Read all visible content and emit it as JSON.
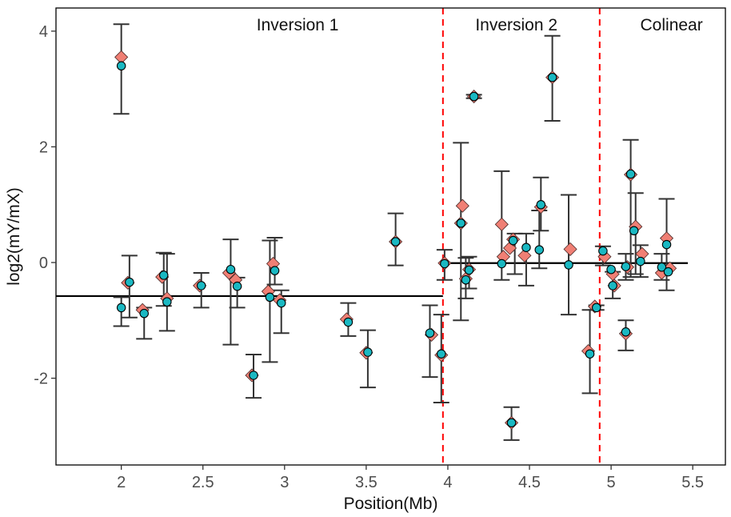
{
  "chart_data": {
    "type": "scatter",
    "title": "",
    "xlabel": "Position(Mb)",
    "ylabel": "log2(mY/mX)",
    "xlim": [
      1.6,
      5.7
    ],
    "ylim": [
      -3.5,
      4.4
    ],
    "x_ticks": [
      2,
      2.5,
      3,
      3.5,
      4,
      4.5,
      5,
      5.5
    ],
    "x_tick_labels": [
      "2",
      "2.5",
      "3",
      "3.5",
      "4",
      "4.5",
      "5",
      "5.5"
    ],
    "y_ticks": [
      -2,
      0,
      2,
      4
    ],
    "y_tick_labels": [
      "-2",
      "0",
      "2",
      "4"
    ],
    "grid": false,
    "colors": {
      "diamond": "#f07f74",
      "circle": "#1ab8c2",
      "errorbar": "#333333",
      "divider": "#ff0000",
      "segment": "#000000"
    },
    "regions": [
      {
        "label": "Inversion 1",
        "label_x": 3.08,
        "from": 1.6,
        "to": 3.97
      },
      {
        "label": "Inversion 2",
        "label_x": 4.42,
        "from": 3.97,
        "to": 4.93
      },
      {
        "label": "Colinear",
        "label_x": 5.37,
        "from": 4.93,
        "to": 5.7
      }
    ],
    "dividers": [
      3.97,
      4.93
    ],
    "mean_segments": [
      {
        "x_start": 1.6,
        "x_end": 3.97,
        "y": -0.58
      },
      {
        "x_start": 3.97,
        "x_end": 5.47,
        "y": -0.01
      }
    ],
    "series": [
      {
        "shape": "diamond",
        "points": [
          {
            "x": 2.0,
            "y": 3.55
          },
          {
            "x": 2.04,
            "y": -0.35
          },
          {
            "x": 2.13,
            "y": -0.82
          },
          {
            "x": 2.25,
            "y": -0.25
          },
          {
            "x": 2.28,
            "y": -0.62
          },
          {
            "x": 2.48,
            "y": -0.4
          },
          {
            "x": 2.66,
            "y": -0.18
          },
          {
            "x": 2.7,
            "y": -0.3
          },
          {
            "x": 2.8,
            "y": -1.95
          },
          {
            "x": 2.9,
            "y": -0.5
          },
          {
            "x": 2.93,
            "y": -0.02
          },
          {
            "x": 2.97,
            "y": -0.65
          },
          {
            "x": 3.38,
            "y": -0.98
          },
          {
            "x": 3.5,
            "y": -1.56
          },
          {
            "x": 3.68,
            "y": 0.36
          },
          {
            "x": 3.9,
            "y": -1.25
          },
          {
            "x": 3.96,
            "y": -1.6
          },
          {
            "x": 3.98,
            "y": -0.01
          },
          {
            "x": 4.09,
            "y": 0.98
          },
          {
            "x": 4.08,
            "y": 0.68
          },
          {
            "x": 4.11,
            "y": -0.28
          },
          {
            "x": 4.13,
            "y": -0.12
          },
          {
            "x": 4.16,
            "y": 2.87
          },
          {
            "x": 4.33,
            "y": 0.66
          },
          {
            "x": 4.34,
            "y": 0.1
          },
          {
            "x": 4.38,
            "y": 0.25
          },
          {
            "x": 4.39,
            "y": -2.77
          },
          {
            "x": 4.4,
            "y": 0.4
          },
          {
            "x": 4.47,
            "y": 0.12
          },
          {
            "x": 4.57,
            "y": 0.96
          },
          {
            "x": 4.64,
            "y": 3.2
          },
          {
            "x": 4.75,
            "y": 0.23
          },
          {
            "x": 4.86,
            "y": -1.53
          },
          {
            "x": 4.9,
            "y": -0.76
          },
          {
            "x": 4.96,
            "y": 0.1
          },
          {
            "x": 5.01,
            "y": -0.2
          },
          {
            "x": 5.02,
            "y": -0.4
          },
          {
            "x": 5.09,
            "y": -1.23
          },
          {
            "x": 5.1,
            "y": -0.08
          },
          {
            "x": 5.12,
            "y": 1.52
          },
          {
            "x": 5.15,
            "y": 0.62
          },
          {
            "x": 5.19,
            "y": 0.15
          },
          {
            "x": 5.31,
            "y": -0.18
          },
          {
            "x": 5.34,
            "y": 0.42
          },
          {
            "x": 5.36,
            "y": -0.1
          }
        ]
      },
      {
        "shape": "circle",
        "points": [
          {
            "x": 2.0,
            "y": 3.4
          },
          {
            "x": 2.0,
            "y": -0.78
          },
          {
            "x": 2.05,
            "y": -0.34
          },
          {
            "x": 2.14,
            "y": -0.88
          },
          {
            "x": 2.26,
            "y": -0.22
          },
          {
            "x": 2.28,
            "y": -0.68
          },
          {
            "x": 2.49,
            "y": -0.4
          },
          {
            "x": 2.67,
            "y": -0.12
          },
          {
            "x": 2.71,
            "y": -0.41
          },
          {
            "x": 2.81,
            "y": -1.95
          },
          {
            "x": 2.91,
            "y": -0.6
          },
          {
            "x": 2.94,
            "y": -0.14
          },
          {
            "x": 2.98,
            "y": -0.7
          },
          {
            "x": 3.39,
            "y": -1.03
          },
          {
            "x": 3.51,
            "y": -1.55
          },
          {
            "x": 3.68,
            "y": 0.36
          },
          {
            "x": 3.89,
            "y": -1.22
          },
          {
            "x": 3.96,
            "y": -1.58
          },
          {
            "x": 3.98,
            "y": -0.02
          },
          {
            "x": 4.08,
            "y": 0.68
          },
          {
            "x": 4.11,
            "y": -0.3
          },
          {
            "x": 4.13,
            "y": -0.13
          },
          {
            "x": 4.16,
            "y": 2.87
          },
          {
            "x": 4.33,
            "y": -0.02
          },
          {
            "x": 4.39,
            "y": -2.77
          },
          {
            "x": 4.4,
            "y": 0.38
          },
          {
            "x": 4.48,
            "y": 0.26
          },
          {
            "x": 4.56,
            "y": 0.22
          },
          {
            "x": 4.57,
            "y": 1.0
          },
          {
            "x": 4.64,
            "y": 3.2
          },
          {
            "x": 4.74,
            "y": -0.04
          },
          {
            "x": 4.87,
            "y": -1.58
          },
          {
            "x": 4.91,
            "y": -0.78
          },
          {
            "x": 4.95,
            "y": 0.2
          },
          {
            "x": 5.0,
            "y": -0.12
          },
          {
            "x": 5.01,
            "y": -0.4
          },
          {
            "x": 5.09,
            "y": -1.2
          },
          {
            "x": 5.09,
            "y": -0.07
          },
          {
            "x": 5.12,
            "y": 1.53
          },
          {
            "x": 5.14,
            "y": 0.55
          },
          {
            "x": 5.18,
            "y": 0.02
          },
          {
            "x": 5.31,
            "y": -0.08
          },
          {
            "x": 5.34,
            "y": 0.31
          },
          {
            "x": 5.35,
            "y": -0.16
          }
        ]
      }
    ],
    "error_bars": [
      {
        "x": 2.0,
        "low": 2.57,
        "high": 4.12
      },
      {
        "x": 2.0,
        "low": -1.1,
        "high": -0.6
      },
      {
        "x": 2.05,
        "low": -0.95,
        "high": 0.12
      },
      {
        "x": 2.14,
        "low": -1.32,
        "high": -0.78
      },
      {
        "x": 2.26,
        "low": -0.75,
        "high": 0.17
      },
      {
        "x": 2.28,
        "low": -1.18,
        "high": 0.15
      },
      {
        "x": 2.49,
        "low": -0.78,
        "high": -0.18
      },
      {
        "x": 2.67,
        "low": -1.42,
        "high": 0.4
      },
      {
        "x": 2.71,
        "low": -0.78,
        "high": -0.26
      },
      {
        "x": 2.81,
        "low": -2.34,
        "high": -1.59
      },
      {
        "x": 2.91,
        "low": -1.72,
        "high": 0.38
      },
      {
        "x": 2.94,
        "low": -0.38,
        "high": 0.43
      },
      {
        "x": 2.98,
        "low": -1.22,
        "high": -0.48
      },
      {
        "x": 3.39,
        "low": -1.27,
        "high": -0.7
      },
      {
        "x": 3.51,
        "low": -2.16,
        "high": -1.17
      },
      {
        "x": 3.68,
        "low": -0.05,
        "high": 0.85
      },
      {
        "x": 3.89,
        "low": -1.98,
        "high": -0.74
      },
      {
        "x": 3.96,
        "low": -2.42,
        "high": -0.9
      },
      {
        "x": 3.98,
        "low": -0.3,
        "high": 0.22
      },
      {
        "x": 4.08,
        "low": -1.0,
        "high": 2.07
      },
      {
        "x": 4.11,
        "low": -0.62,
        "high": 0.08
      },
      {
        "x": 4.13,
        "low": -0.45,
        "high": 0.1
      },
      {
        "x": 4.16,
        "low": 2.84,
        "high": 2.9
      },
      {
        "x": 4.33,
        "low": -0.3,
        "high": 1.58
      },
      {
        "x": 4.39,
        "low": -3.07,
        "high": -2.5
      },
      {
        "x": 4.41,
        "low": -0.2,
        "high": 0.5
      },
      {
        "x": 4.48,
        "low": -0.4,
        "high": 0.5
      },
      {
        "x": 4.56,
        "low": -0.1,
        "high": 0.9
      },
      {
        "x": 4.57,
        "low": 0.55,
        "high": 1.47
      },
      {
        "x": 4.64,
        "low": 2.45,
        "high": 3.92
      },
      {
        "x": 4.74,
        "low": -0.9,
        "high": 1.17
      },
      {
        "x": 4.87,
        "low": -2.26,
        "high": -0.82
      },
      {
        "x": 4.91,
        "low": -0.82,
        "high": -0.74
      },
      {
        "x": 4.95,
        "low": -0.05,
        "high": 0.28
      },
      {
        "x": 5.01,
        "low": -0.62,
        "high": -0.16
      },
      {
        "x": 5.09,
        "low": -1.52,
        "high": -1.0
      },
      {
        "x": 5.09,
        "low": -0.3,
        "high": 0.15
      },
      {
        "x": 5.12,
        "low": -0.25,
        "high": 2.12
      },
      {
        "x": 5.15,
        "low": -0.2,
        "high": 1.2
      },
      {
        "x": 5.18,
        "low": -0.25,
        "high": 0.3
      },
      {
        "x": 5.31,
        "low": -0.3,
        "high": 0.15
      },
      {
        "x": 5.34,
        "low": -0.48,
        "high": 1.1
      }
    ]
  }
}
